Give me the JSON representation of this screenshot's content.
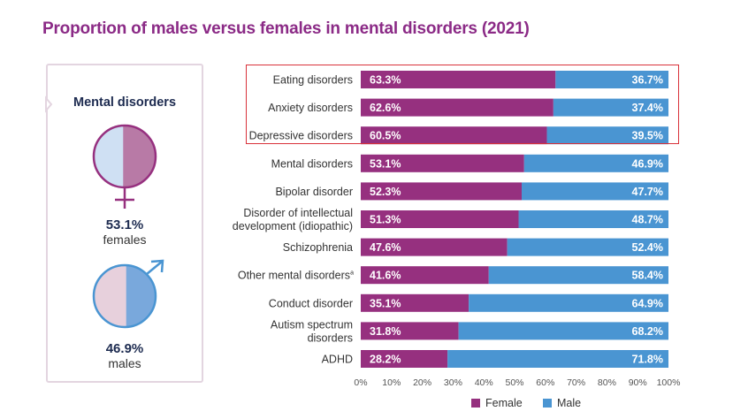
{
  "title": "Proportion of males versus females in mental disorders (2021)",
  "side_panel": {
    "heading": "Mental disorders",
    "female_pct": "53.1%",
    "female_label": "females",
    "female_value": 53.1,
    "male_pct": "46.9%",
    "male_label": "males",
    "male_value": 46.9
  },
  "colors": {
    "female": "#96307f",
    "male": "#4a95d2",
    "female_light": "#b87aa6",
    "male_light": "#79a8dc",
    "title": "#8b2a86",
    "highlight": "#d9323a"
  },
  "chart_data": {
    "type": "bar",
    "orientation": "horizontal",
    "stacked": true,
    "categories": [
      "Eating disorders",
      "Anxiety disorders",
      "Depressive disorders",
      "Mental disorders",
      "Bipolar disorder",
      "Disorder of intellectual development (idiopathic)",
      "Schizophrenia",
      "Other mental disorders",
      "Conduct disorder",
      "Autism spectrum disorders",
      "ADHD"
    ],
    "category_lines": [
      [
        "Eating disorders"
      ],
      [
        "Anxiety disorders"
      ],
      [
        "Depressive disorders"
      ],
      [
        "Mental disorders"
      ],
      [
        "Bipolar disorder"
      ],
      [
        "Disorder of intellectual",
        "development (idiopathic)"
      ],
      [
        "Schizophrenia"
      ],
      [
        "Other mental disorders"
      ],
      [
        "Conduct disorder"
      ],
      [
        "Autism spectrum",
        "disorders"
      ],
      [
        "ADHD"
      ]
    ],
    "superscripts": [
      "",
      "",
      "",
      "",
      "",
      "",
      "",
      "a",
      "",
      "",
      ""
    ],
    "series": [
      {
        "name": "Female",
        "values": [
          63.3,
          62.6,
          60.5,
          53.1,
          52.3,
          51.3,
          47.6,
          41.6,
          35.1,
          31.8,
          28.2
        ],
        "labels": [
          "63.3%",
          "62.6%",
          "60.5%",
          "53.1%",
          "52.3%",
          "51.3%",
          "47.6%",
          "41.6%",
          "35.1%",
          "31.8%",
          "28.2%"
        ]
      },
      {
        "name": "Male",
        "values": [
          36.7,
          37.4,
          39.5,
          46.9,
          47.7,
          48.7,
          52.4,
          58.4,
          64.9,
          68.2,
          71.8
        ],
        "labels": [
          "36.7%",
          "37.4%",
          "39.5%",
          "46.9%",
          "47.7%",
          "48.7%",
          "52.4%",
          "58.4%",
          "64.9%",
          "68.2%",
          "71.8%"
        ]
      }
    ],
    "xlim": [
      0,
      100
    ],
    "xticks": [
      "0%",
      "10%",
      "20%",
      "30%",
      "40%",
      "50%",
      "60%",
      "70%",
      "80%",
      "90%",
      "100%"
    ],
    "highlighted_categories": [
      "Eating disorders",
      "Anxiety disorders",
      "Depressive disorders"
    ],
    "legend": "bottom",
    "grid": false
  }
}
